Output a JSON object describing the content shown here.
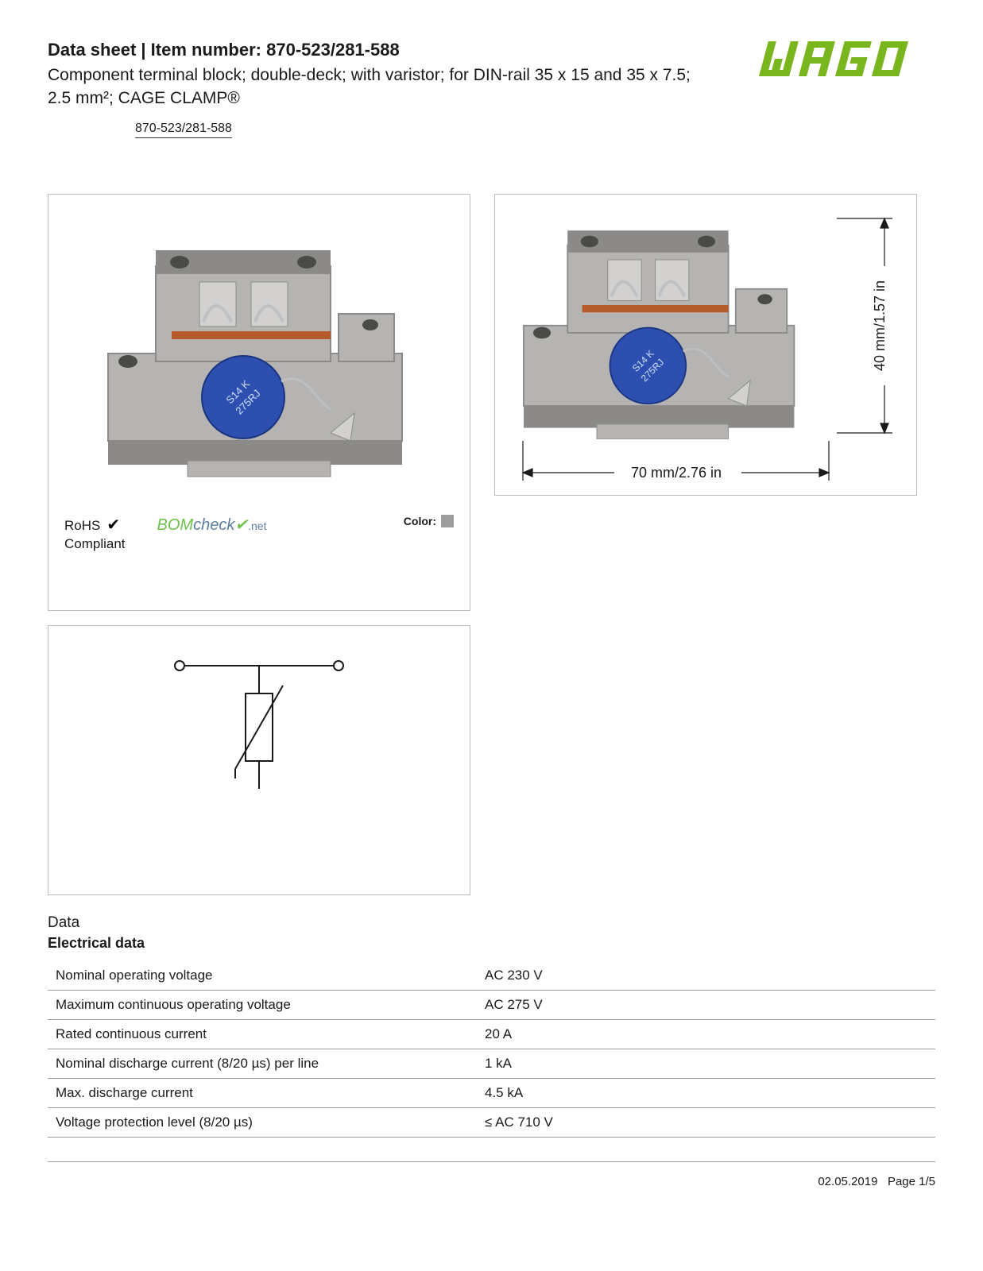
{
  "header": {
    "title_prefix": "Data sheet  |  Item number: ",
    "item_number": "870-523/281-588",
    "subtitle": "Component terminal block; double-deck; with varistor; for DIN-rail 35 x 15 and 35 x 7.5; 2.5 mm²; CAGE CLAMP®",
    "link_text": "870-523/281-588"
  },
  "logo": {
    "text": "WAGO",
    "fill": "#79b51c"
  },
  "panel1": {
    "compliance": {
      "rohs_line1": "RoHS",
      "rohs_line2": "Compliant",
      "bomcheck_main": "BOMcheck",
      "bomcheck_suffix": ".net",
      "color_label": "Color:",
      "color_swatch": "#9e9e9e"
    },
    "product_colors": {
      "body": "#b5b4b2",
      "body_dark": "#8b8a88",
      "body_light": "#d2d1cf",
      "varistor": "#2d4fb0",
      "copper": "#b55a2a"
    }
  },
  "panel2": {
    "dim_width": "70 mm/2.76 in",
    "dim_height": "40 mm/1.57 in"
  },
  "schematic": {
    "type": "varistor-circuit",
    "stroke": "#1a1a1a"
  },
  "data_section": {
    "heading": "Data",
    "subheading": "Electrical data",
    "rows": [
      {
        "label": "Nominal operating voltage",
        "value": "AC 230 V"
      },
      {
        "label": "Maximum continuous operating voltage",
        "value": "AC 275 V"
      },
      {
        "label": "Rated continuous current",
        "value": "20 A"
      },
      {
        "label": "Nominal discharge current (8/20 µs) per line",
        "value": "1 kA"
      },
      {
        "label": "Max. discharge current",
        "value": "4.5 kA"
      },
      {
        "label": "Voltage protection level (8/20 µs)",
        "value": "≤ AC 710 V"
      }
    ]
  },
  "footer": {
    "date": "02.05.2019",
    "page": "Page 1/5"
  }
}
